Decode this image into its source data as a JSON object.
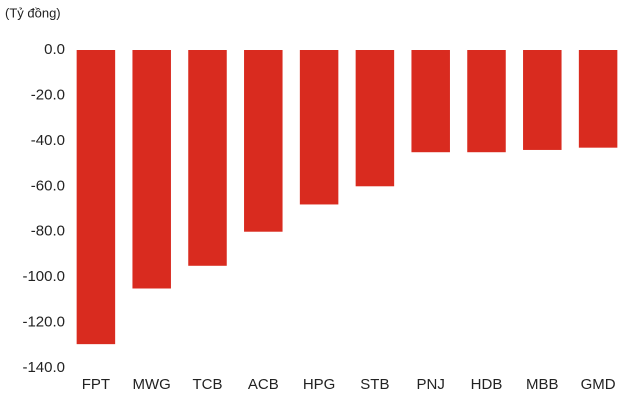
{
  "chart_data": {
    "type": "bar",
    "unit_label": "(Tỷ đồng)",
    "categories": [
      "FPT",
      "MWG",
      "TCB",
      "ACB",
      "HPG",
      "STB",
      "PNJ",
      "HDB",
      "MBB",
      "GMD"
    ],
    "values": [
      -129.5,
      -105,
      -95,
      -80,
      -68,
      -60,
      -45,
      -45,
      -44,
      -43
    ],
    "color": "#d92b1f",
    "ylim": [
      -140,
      0
    ],
    "yticks": [
      {
        "value": 0,
        "label": "0.0"
      },
      {
        "value": -20,
        "label": "-20.0"
      },
      {
        "value": -40,
        "label": "-40.0"
      },
      {
        "value": -60,
        "label": "-60.0"
      },
      {
        "value": -80,
        "label": "-80.0"
      },
      {
        "value": -100,
        "label": "-100.0"
      },
      {
        "value": -120,
        "label": "-120.0"
      },
      {
        "value": -140,
        "label": "-140.0"
      }
    ],
    "grid": false
  }
}
